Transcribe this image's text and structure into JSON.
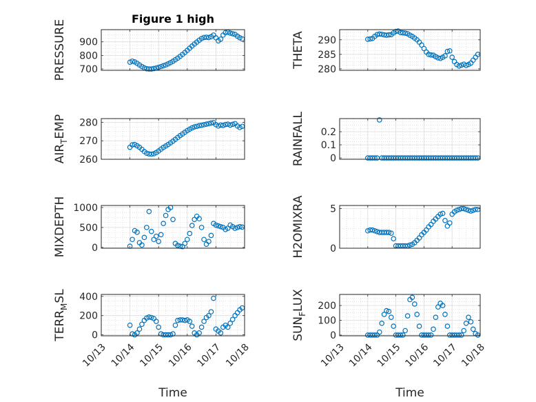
{
  "chart_data": [
    {
      "id": "pressure",
      "type": "scatter",
      "title": "Figure 1 high",
      "ylabel": "PRESSURE",
      "ylabel_sub": null,
      "xlabel": "",
      "x_domain": [
        "10/13",
        "10/18"
      ],
      "ylim": [
        690,
        990
      ],
      "yticks": [
        700,
        800,
        900
      ],
      "xticklabels": [],
      "grid": true,
      "marker_color": "#0072BD",
      "x": [
        "10/14 0:00",
        "10/14 2:00",
        "10/14 4:00",
        "10/14 6:00",
        "10/14 8:00",
        "10/14 10:00",
        "10/14 12:00",
        "10/14 14:00",
        "10/14 16:00",
        "10/14 18:00",
        "10/14 20:00",
        "10/14 22:00",
        "10/15 0:00",
        "10/15 2:00",
        "10/15 4:00",
        "10/15 6:00",
        "10/15 8:00",
        "10/15 10:00",
        "10/15 12:00",
        "10/15 14:00",
        "10/15 16:00",
        "10/15 18:00",
        "10/15 20:00",
        "10/15 22:00",
        "10/16 0:00",
        "10/16 2:00",
        "10/16 4:00",
        "10/16 6:00",
        "10/16 8:00",
        "10/16 10:00",
        "10/16 12:00",
        "10/16 14:00",
        "10/16 16:00",
        "10/16 18:00",
        "10/16 20:00",
        "10/16 22:00",
        "10/17 0:00",
        "10/17 2:00",
        "10/17 4:00",
        "10/17 6:00",
        "10/17 8:00",
        "10/17 10:00",
        "10/17 12:00",
        "10/17 14:00",
        "10/17 16:00",
        "10/17 18:00",
        "10/17 20:00",
        "10/17 22:00"
      ],
      "y": [
        750,
        758,
        752,
        742,
        730,
        718,
        708,
        702,
        700,
        700,
        703,
        707,
        712,
        718,
        724,
        730,
        738,
        747,
        757,
        768,
        780,
        793,
        807,
        822,
        837,
        853,
        869,
        884,
        898,
        912,
        925,
        932,
        934,
        932,
        938,
        950,
        930,
        908,
        920,
        950,
        968,
        972,
        965,
        960,
        955,
        942,
        930,
        922
      ]
    },
    {
      "id": "theta",
      "type": "scatter",
      "title": "",
      "ylabel": "THETA",
      "ylabel_sub": null,
      "xlabel": "",
      "x_domain": [
        "10/13",
        "10/18"
      ],
      "ylim": [
        279.5,
        293.5
      ],
      "yticks": [
        280,
        285,
        290
      ],
      "xticklabels": [],
      "grid": true,
      "marker_color": "#0072BD",
      "x": [
        "10/14 0:00",
        "10/14 2:00",
        "10/14 4:00",
        "10/14 6:00",
        "10/14 8:00",
        "10/14 10:00",
        "10/14 12:00",
        "10/14 14:00",
        "10/14 16:00",
        "10/14 18:00",
        "10/14 20:00",
        "10/14 22:00",
        "10/15 0:00",
        "10/15 2:00",
        "10/15 4:00",
        "10/15 6:00",
        "10/15 8:00",
        "10/15 10:00",
        "10/15 12:00",
        "10/15 14:00",
        "10/15 16:00",
        "10/15 18:00",
        "10/15 20:00",
        "10/15 22:00",
        "10/16 0:00",
        "10/16 2:00",
        "10/16 4:00",
        "10/16 6:00",
        "10/16 8:00",
        "10/16 10:00",
        "10/16 12:00",
        "10/16 14:00",
        "10/16 16:00",
        "10/16 18:00",
        "10/16 20:00",
        "10/16 22:00",
        "10/17 0:00",
        "10/17 2:00",
        "10/17 4:00",
        "10/17 6:00",
        "10/17 8:00",
        "10/17 10:00",
        "10/17 12:00",
        "10/17 14:00",
        "10/17 16:00",
        "10/17 18:00",
        "10/17 20:00",
        "10/17 22:00"
      ],
      "y": [
        290.2,
        290.3,
        290.5,
        291.2,
        291.8,
        292.0,
        291.9,
        291.7,
        291.6,
        291.7,
        291.8,
        292.4,
        292.9,
        293.0,
        292.5,
        292.4,
        292.3,
        292.1,
        291.6,
        291.2,
        290.6,
        290.0,
        289.2,
        288.2,
        287.0,
        285.8,
        285.0,
        284.8,
        284.7,
        284.2,
        283.8,
        283.6,
        284.0,
        284.5,
        286.0,
        286.2,
        284.0,
        282.5,
        281.5,
        281.0,
        281.3,
        281.6,
        281.2,
        281.5,
        282.0,
        283.0,
        284.0,
        285.0
      ]
    },
    {
      "id": "air_temp",
      "type": "scatter",
      "title": "",
      "ylabel": "AIR",
      "ylabel_sub": "T",
      "ylabel_suffix": "EMP",
      "xlabel": "",
      "x_domain": [
        "10/13",
        "10/18"
      ],
      "ylim": [
        260,
        282
      ],
      "yticks": [
        260,
        270,
        280
      ],
      "xticklabels": [],
      "grid": true,
      "marker_color": "#0072BD",
      "x": [
        "10/14 0:00",
        "10/14 2:00",
        "10/14 4:00",
        "10/14 6:00",
        "10/14 8:00",
        "10/14 10:00",
        "10/14 12:00",
        "10/14 14:00",
        "10/14 16:00",
        "10/14 18:00",
        "10/14 20:00",
        "10/14 22:00",
        "10/15 0:00",
        "10/15 2:00",
        "10/15 4:00",
        "10/15 6:00",
        "10/15 8:00",
        "10/15 10:00",
        "10/15 12:00",
        "10/15 14:00",
        "10/15 16:00",
        "10/15 18:00",
        "10/15 20:00",
        "10/15 22:00",
        "10/16 0:00",
        "10/16 2:00",
        "10/16 4:00",
        "10/16 6:00",
        "10/16 8:00",
        "10/16 10:00",
        "10/16 12:00",
        "10/16 14:00",
        "10/16 16:00",
        "10/16 18:00",
        "10/16 20:00",
        "10/16 22:00",
        "10/17 0:00",
        "10/17 2:00",
        "10/17 4:00",
        "10/17 6:00",
        "10/17 8:00",
        "10/17 10:00",
        "10/17 12:00",
        "10/17 14:00",
        "10/17 16:00",
        "10/17 18:00",
        "10/17 20:00",
        "10/17 22:00"
      ],
      "y": [
        266.5,
        267.8,
        268.0,
        267.3,
        266.5,
        265.4,
        264.2,
        263.3,
        262.9,
        262.8,
        263.0,
        263.6,
        264.5,
        265.5,
        266.4,
        267.2,
        268.0,
        268.9,
        269.8,
        270.8,
        271.8,
        272.8,
        273.7,
        274.6,
        275.5,
        276.3,
        277.0,
        277.5,
        277.8,
        278.2,
        278.4,
        278.7,
        279.0,
        279.3,
        279.6,
        279.8,
        278.7,
        278.0,
        278.5,
        278.3,
        278.8,
        279.0,
        278.5,
        278.9,
        279.3,
        278.0,
        277.2,
        277.8
      ]
    },
    {
      "id": "rainfall",
      "type": "scatter",
      "title": "",
      "ylabel": "RAINFALL",
      "ylabel_sub": null,
      "xlabel": "",
      "x_domain": [
        "10/13",
        "10/18"
      ],
      "ylim": [
        -0.01,
        0.3
      ],
      "yticks": [
        0,
        0.1,
        0.2
      ],
      "xticklabels": [],
      "grid": true,
      "marker_color": "#0072BD",
      "x": [
        "10/14 0:00",
        "10/14 2:00",
        "10/14 4:00",
        "10/14 6:00",
        "10/14 8:00",
        "10/14 10:00",
        "10/14 12:00",
        "10/14 14:00",
        "10/14 16:00",
        "10/14 18:00",
        "10/14 20:00",
        "10/14 22:00",
        "10/15 0:00",
        "10/15 2:00",
        "10/15 4:00",
        "10/15 6:00",
        "10/15 8:00",
        "10/15 10:00",
        "10/15 12:00",
        "10/15 14:00",
        "10/15 16:00",
        "10/15 18:00",
        "10/15 20:00",
        "10/15 22:00",
        "10/16 0:00",
        "10/16 2:00",
        "10/16 4:00",
        "10/16 6:00",
        "10/16 8:00",
        "10/16 10:00",
        "10/16 12:00",
        "10/16 14:00",
        "10/16 16:00",
        "10/16 18:00",
        "10/16 20:00",
        "10/16 22:00",
        "10/17 0:00",
        "10/17 2:00",
        "10/17 4:00",
        "10/17 6:00",
        "10/17 8:00",
        "10/17 10:00",
        "10/17 12:00",
        "10/17 14:00",
        "10/17 16:00",
        "10/17 18:00",
        "10/17 20:00",
        "10/17 22:00"
      ],
      "y": [
        0,
        0,
        0,
        0,
        0,
        0.29,
        0,
        0,
        0,
        0,
        0,
        0,
        0,
        0,
        0,
        0,
        0,
        0,
        0,
        0,
        0,
        0,
        0,
        0,
        0,
        0,
        0,
        0,
        0,
        0,
        0,
        0,
        0,
        0,
        0,
        0,
        0,
        0,
        0,
        0,
        0,
        0,
        0,
        0,
        0,
        0,
        0,
        0
      ]
    },
    {
      "id": "mixdepth",
      "type": "scatter",
      "title": "",
      "ylabel": "MIXDEPTH",
      "ylabel_sub": null,
      "xlabel": "",
      "x_domain": [
        "10/13",
        "10/18"
      ],
      "ylim": [
        -20,
        1050
      ],
      "yticks": [
        0,
        500,
        1000
      ],
      "xticklabels": [],
      "grid": true,
      "marker_color": "#0072BD",
      "x": [
        "10/14 0:00",
        "10/14 2:00",
        "10/14 4:00",
        "10/14 6:00",
        "10/14 8:00",
        "10/14 10:00",
        "10/14 12:00",
        "10/14 14:00",
        "10/14 16:00",
        "10/14 18:00",
        "10/14 20:00",
        "10/14 22:00",
        "10/15 0:00",
        "10/15 2:00",
        "10/15 4:00",
        "10/15 6:00",
        "10/15 8:00",
        "10/15 10:00",
        "10/15 12:00",
        "10/15 14:00",
        "10/15 16:00",
        "10/15 18:00",
        "10/15 20:00",
        "10/15 22:00",
        "10/16 0:00",
        "10/16 2:00",
        "10/16 4:00",
        "10/16 6:00",
        "10/16 8:00",
        "10/16 10:00",
        "10/16 12:00",
        "10/16 14:00",
        "10/16 16:00",
        "10/16 18:00",
        "10/16 20:00",
        "10/16 22:00",
        "10/17 0:00",
        "10/17 2:00",
        "10/17 4:00",
        "10/17 6:00",
        "10/17 8:00",
        "10/17 10:00",
        "10/17 12:00",
        "10/17 14:00",
        "10/17 16:00",
        "10/17 18:00",
        "10/17 20:00",
        "10/17 22:00"
      ],
      "y": [
        30,
        200,
        420,
        380,
        120,
        60,
        250,
        500,
        900,
        400,
        200,
        280,
        150,
        320,
        600,
        800,
        950,
        1000,
        700,
        100,
        50,
        30,
        20,
        100,
        200,
        350,
        550,
        700,
        780,
        720,
        500,
        200,
        80,
        150,
        300,
        600,
        560,
        540,
        520,
        500,
        450,
        480,
        560,
        520,
        480,
        500,
        520,
        510
      ]
    },
    {
      "id": "h2omixra",
      "type": "scatter",
      "title": "",
      "ylabel": "H2OMIXRA",
      "ylabel_sub": null,
      "xlabel": "",
      "x_domain": [
        "10/13",
        "10/18"
      ],
      "ylim": [
        0,
        5.4
      ],
      "yticks": [
        0,
        5
      ],
      "xticklabels": [],
      "grid": true,
      "marker_color": "#0072BD",
      "x": [
        "10/14 0:00",
        "10/14 2:00",
        "10/14 4:00",
        "10/14 6:00",
        "10/14 8:00",
        "10/14 10:00",
        "10/14 12:00",
        "10/14 14:00",
        "10/14 16:00",
        "10/14 18:00",
        "10/14 20:00",
        "10/14 22:00",
        "10/15 0:00",
        "10/15 2:00",
        "10/15 4:00",
        "10/15 6:00",
        "10/15 8:00",
        "10/15 10:00",
        "10/15 12:00",
        "10/15 14:00",
        "10/15 16:00",
        "10/15 18:00",
        "10/15 20:00",
        "10/15 22:00",
        "10/16 0:00",
        "10/16 2:00",
        "10/16 4:00",
        "10/16 6:00",
        "10/16 8:00",
        "10/16 10:00",
        "10/16 12:00",
        "10/16 14:00",
        "10/16 16:00",
        "10/16 18:00",
        "10/16 20:00",
        "10/16 22:00",
        "10/17 0:00",
        "10/17 2:00",
        "10/17 4:00",
        "10/17 6:00",
        "10/17 8:00",
        "10/17 10:00",
        "10/17 12:00",
        "10/17 14:00",
        "10/17 16:00",
        "10/17 18:00",
        "10/17 20:00",
        "10/17 22:00"
      ],
      "y": [
        2.2,
        2.3,
        2.3,
        2.2,
        2.1,
        2.0,
        2.0,
        2.0,
        2.0,
        2.0,
        1.9,
        1.2,
        0.3,
        0.3,
        0.3,
        0.3,
        0.3,
        0.3,
        0.4,
        0.5,
        0.7,
        1.0,
        1.3,
        1.7,
        2.0,
        2.3,
        2.7,
        3.0,
        3.4,
        3.7,
        4.0,
        4.3,
        4.4,
        3.5,
        2.8,
        3.2,
        4.3,
        4.6,
        4.8,
        4.9,
        5.0,
        5.0,
        4.9,
        4.8,
        4.7,
        4.8,
        4.9,
        4.9
      ]
    },
    {
      "id": "terr_msl",
      "type": "scatter",
      "title": "",
      "ylabel": "TERR",
      "ylabel_sub": "M",
      "ylabel_suffix": "SL",
      "xlabel": "Time",
      "x_domain": [
        "10/13",
        "10/18"
      ],
      "ylim": [
        -10,
        420
      ],
      "yticks": [
        0,
        200,
        400
      ],
      "xticklabels": [
        "10/13",
        "10/14",
        "10/15",
        "10/16",
        "10/17",
        "10/18"
      ],
      "grid": true,
      "marker_color": "#0072BD",
      "x": [
        "10/14 0:00",
        "10/14 2:00",
        "10/14 4:00",
        "10/14 6:00",
        "10/14 8:00",
        "10/14 10:00",
        "10/14 12:00",
        "10/14 14:00",
        "10/14 16:00",
        "10/14 18:00",
        "10/14 20:00",
        "10/14 22:00",
        "10/15 0:00",
        "10/15 2:00",
        "10/15 4:00",
        "10/15 6:00",
        "10/15 8:00",
        "10/15 10:00",
        "10/15 12:00",
        "10/15 14:00",
        "10/15 16:00",
        "10/15 18:00",
        "10/15 20:00",
        "10/15 22:00",
        "10/16 0:00",
        "10/16 2:00",
        "10/16 4:00",
        "10/16 6:00",
        "10/16 8:00",
        "10/16 10:00",
        "10/16 12:00",
        "10/16 14:00",
        "10/16 16:00",
        "10/16 18:00",
        "10/16 20:00",
        "10/16 22:00",
        "10/17 0:00",
        "10/17 2:00",
        "10/17 4:00",
        "10/17 6:00",
        "10/17 8:00",
        "10/17 10:00",
        "10/17 12:00",
        "10/17 14:00",
        "10/17 16:00",
        "10/17 18:00",
        "10/17 20:00",
        "10/17 22:00"
      ],
      "y": [
        100,
        10,
        0,
        20,
        60,
        110,
        150,
        175,
        185,
        180,
        170,
        140,
        80,
        10,
        0,
        0,
        0,
        0,
        10,
        100,
        150,
        155,
        155,
        150,
        155,
        140,
        90,
        20,
        0,
        20,
        80,
        140,
        180,
        200,
        240,
        380,
        60,
        40,
        20,
        80,
        100,
        80,
        120,
        160,
        200,
        230,
        260,
        280
      ]
    },
    {
      "id": "sun_flux",
      "type": "scatter",
      "title": "",
      "ylabel": "SUN",
      "ylabel_sub": "F",
      "ylabel_suffix": "LUX",
      "xlabel": "Time",
      "x_domain": [
        "10/13",
        "10/18"
      ],
      "ylim": [
        -5,
        275
      ],
      "yticks": [
        0,
        100,
        200
      ],
      "xticklabels": [
        "10/13",
        "10/14",
        "10/15",
        "10/16",
        "10/17",
        "10/18"
      ],
      "grid": true,
      "marker_color": "#0072BD",
      "x": [
        "10/14 0:00",
        "10/14 2:00",
        "10/14 4:00",
        "10/14 6:00",
        "10/14 8:00",
        "10/14 10:00",
        "10/14 12:00",
        "10/14 14:00",
        "10/14 16:00",
        "10/14 18:00",
        "10/14 20:00",
        "10/14 22:00",
        "10/15 0:00",
        "10/15 2:00",
        "10/15 4:00",
        "10/15 6:00",
        "10/15 8:00",
        "10/15 10:00",
        "10/15 12:00",
        "10/15 14:00",
        "10/15 16:00",
        "10/15 18:00",
        "10/15 20:00",
        "10/15 22:00",
        "10/16 0:00",
        "10/16 2:00",
        "10/16 4:00",
        "10/16 6:00",
        "10/16 8:00",
        "10/16 10:00",
        "10/16 12:00",
        "10/16 14:00",
        "10/16 16:00",
        "10/16 18:00",
        "10/16 20:00",
        "10/16 22:00",
        "10/17 0:00",
        "10/17 2:00",
        "10/17 4:00",
        "10/17 6:00",
        "10/17 8:00",
        "10/17 10:00",
        "10/17 12:00",
        "10/17 14:00",
        "10/17 16:00",
        "10/17 18:00",
        "10/17 20:00",
        "10/17 22:00"
      ],
      "y": [
        0,
        0,
        0,
        0,
        0,
        20,
        80,
        140,
        165,
        160,
        120,
        60,
        0,
        0,
        0,
        0,
        30,
        130,
        240,
        255,
        210,
        140,
        60,
        0,
        0,
        0,
        0,
        0,
        40,
        120,
        190,
        215,
        200,
        140,
        60,
        0,
        0,
        0,
        0,
        0,
        0,
        30,
        80,
        120,
        90,
        40,
        10,
        0
      ]
    }
  ]
}
